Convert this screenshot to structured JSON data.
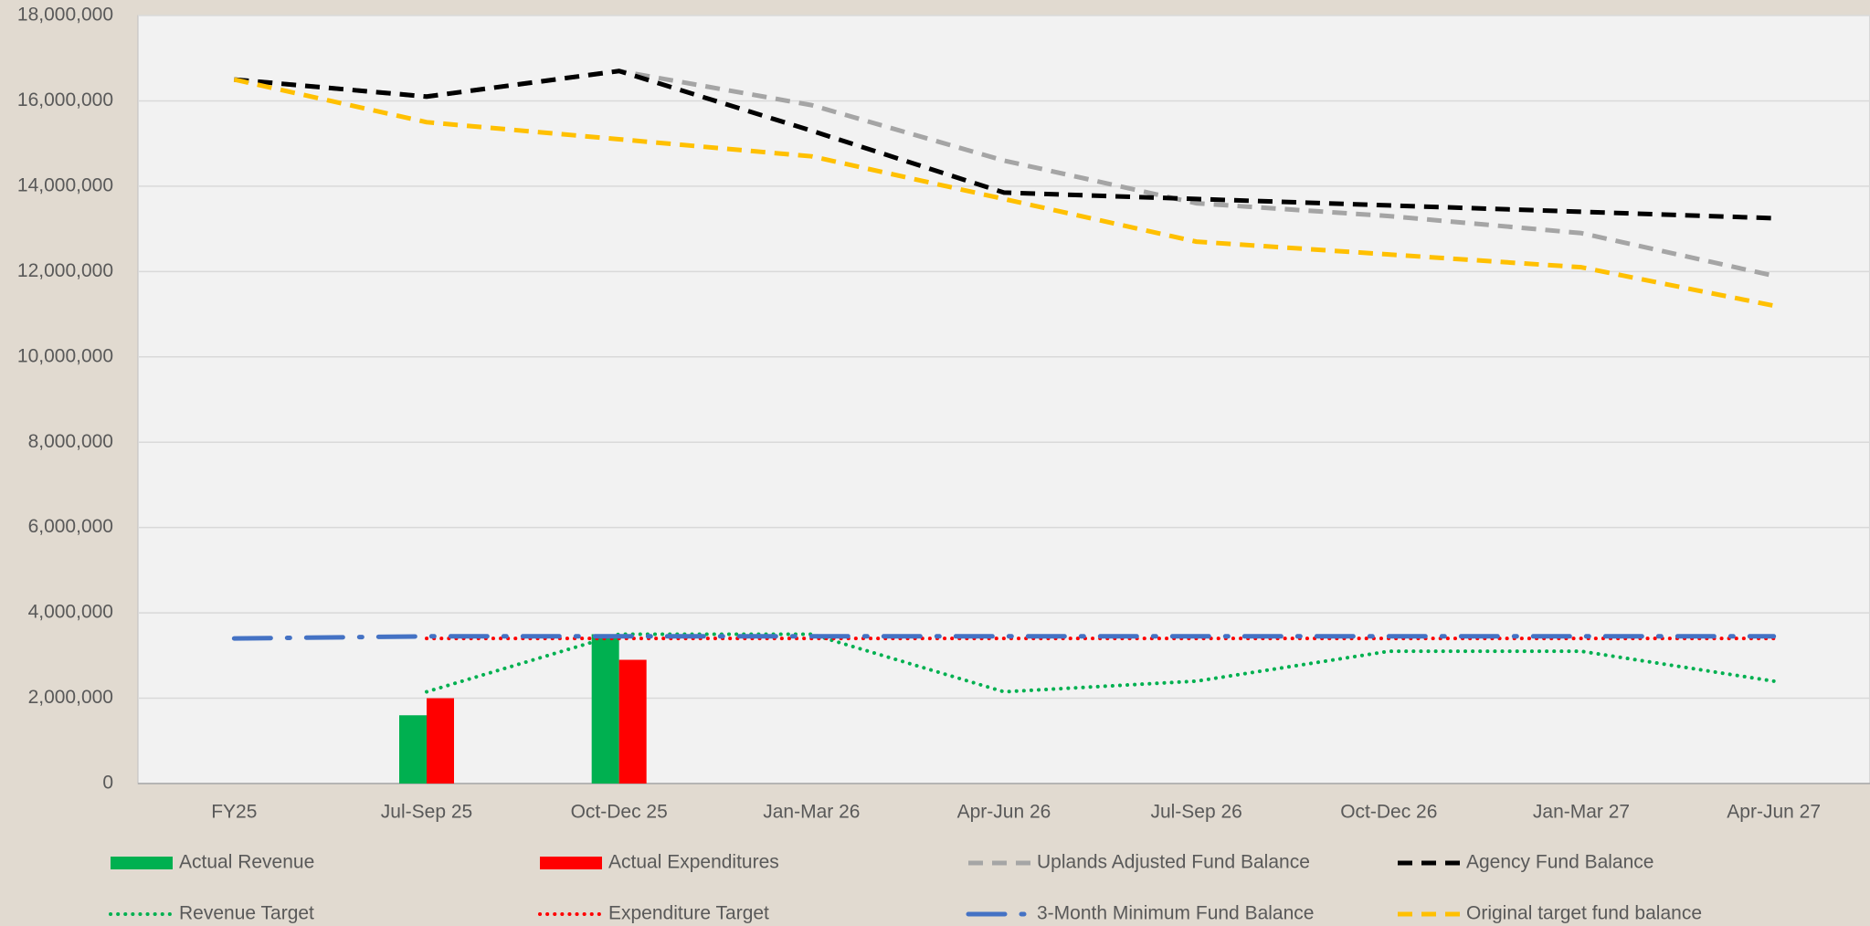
{
  "chart_data": {
    "type": "combo",
    "categories": [
      "FY25",
      "Jul-Sep 25",
      "Oct-Dec 25",
      "Jan-Mar 26",
      "Apr-Jun 26",
      "Jul-Sep 26",
      "Oct-Dec 26",
      "Jan-Mar 27",
      "Apr-Jun 27"
    ],
    "series": [
      {
        "name": "Actual Revenue",
        "type": "bar",
        "color": "#00b050",
        "values": [
          null,
          1600000,
          3500000,
          null,
          null,
          null,
          null,
          null,
          null
        ]
      },
      {
        "name": "Actual Expenditures",
        "type": "bar",
        "color": "#ff0000",
        "values": [
          null,
          2000000,
          2900000,
          null,
          null,
          null,
          null,
          null,
          null
        ]
      },
      {
        "name": "Uplands Adjusted Fund Balance",
        "type": "line",
        "style": "dashed",
        "color": "#a5a5a5",
        "values": [
          16500000,
          16100000,
          16700000,
          15900000,
          14600000,
          13600000,
          13300000,
          12900000,
          11900000
        ]
      },
      {
        "name": "Agency Fund Balance",
        "type": "line",
        "style": "dashed",
        "color": "#000000",
        "values": [
          16500000,
          16100000,
          16700000,
          15300000,
          13850000,
          13700000,
          13550000,
          13400000,
          13250000
        ]
      },
      {
        "name": "Revenue Target",
        "type": "line",
        "style": "dotted",
        "color": "#00b050",
        "values": [
          null,
          2150000,
          3500000,
          3500000,
          2150000,
          2400000,
          3100000,
          3100000,
          2400000
        ]
      },
      {
        "name": "Expenditure Target",
        "type": "line",
        "style": "dotted",
        "color": "#ff0000",
        "values": [
          null,
          3400000,
          3400000,
          3400000,
          3400000,
          3400000,
          3400000,
          3400000,
          3400000
        ]
      },
      {
        "name": "3-Month Minimum Fund Balance",
        "type": "line",
        "style": "dashdot",
        "color": "#4472c4",
        "values": [
          3400000,
          3450000,
          3450000,
          3450000,
          3450000,
          3450000,
          3450000,
          3450000,
          3450000
        ]
      },
      {
        "name": "Original target fund balance",
        "type": "line",
        "style": "dashed",
        "color": "#ffc000",
        "values": [
          16500000,
          15500000,
          15100000,
          14700000,
          13700000,
          12700000,
          12400000,
          12100000,
          11200000
        ]
      }
    ],
    "ylim": [
      0,
      18000000
    ],
    "yticks": [
      0,
      {
        "value": 2000000,
        "label": "2,000,000"
      },
      {
        "value": 4000000,
        "label": "4,000,000"
      },
      {
        "value": 6000000,
        "label": "6,000,000"
      },
      {
        "value": 8000000,
        "label": "8,000,000"
      },
      {
        "value": 10000000,
        "label": "10,000,000"
      },
      {
        "value": 12000000,
        "label": "12,000,000"
      },
      {
        "value": 14000000,
        "label": "14,000,000"
      },
      {
        "value": 16000000,
        "label": "16,000,000"
      },
      {
        "value": 18000000,
        "label": "18,000,000"
      }
    ],
    "grid": true,
    "legend": "bottom"
  }
}
